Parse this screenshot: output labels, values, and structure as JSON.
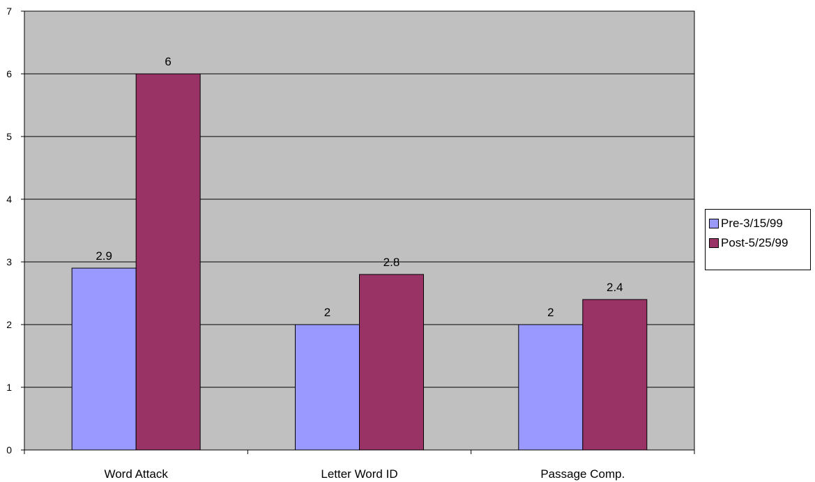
{
  "chart_data": {
    "type": "bar",
    "title": "",
    "xlabel": "",
    "ylabel": "",
    "categories": [
      "Word Attack",
      "Letter Word ID",
      "Passage Comp."
    ],
    "series": [
      {
        "name": "Pre-3/15/99",
        "values": [
          2.9,
          2,
          2
        ],
        "labels": [
          "2.9",
          "2",
          "2"
        ],
        "color": "#9999ff"
      },
      {
        "name": "Post-5/25/99",
        "values": [
          6,
          2.8,
          2.4
        ],
        "labels": [
          "6",
          "2.8",
          "2.4"
        ],
        "color": "#993366"
      }
    ],
    "ylim": [
      0,
      7
    ],
    "yticks": [
      "0",
      "1",
      "2",
      "3",
      "4",
      "5",
      "6",
      "7"
    ],
    "grid": true,
    "legend_position": "right",
    "plot_background": "#c0c0c0"
  }
}
